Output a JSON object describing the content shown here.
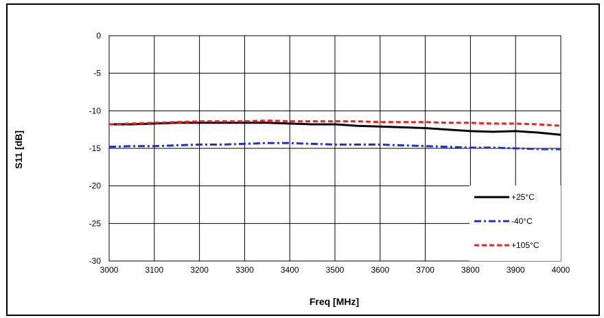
{
  "chart_data": {
    "type": "line",
    "title": "",
    "xlabel": "Freq [MHz]",
    "ylabel": "S11 [dB]",
    "xlim": [
      3000,
      4000
    ],
    "ylim": [
      -30,
      0
    ],
    "xticks": [
      3000,
      3100,
      3200,
      3300,
      3400,
      3500,
      3600,
      3700,
      3800,
      3900,
      4000
    ],
    "yticks": [
      0,
      -5,
      -10,
      -15,
      -20,
      -25,
      -30
    ],
    "grid": true,
    "legend_position": "bottom-right",
    "series": [
      {
        "name": "+25°C",
        "color": "#000000",
        "style": "solid",
        "x": [
          3000,
          3050,
          3100,
          3150,
          3200,
          3250,
          3300,
          3350,
          3400,
          3450,
          3500,
          3550,
          3600,
          3650,
          3700,
          3750,
          3800,
          3850,
          3900,
          3950,
          4000
        ],
        "y": [
          -11.8,
          -11.8,
          -11.7,
          -11.6,
          -11.6,
          -11.6,
          -11.6,
          -11.6,
          -11.7,
          -11.8,
          -11.8,
          -12.0,
          -12.1,
          -12.2,
          -12.3,
          -12.5,
          -12.7,
          -12.8,
          -12.7,
          -12.9,
          -13.2
        ]
      },
      {
        "name": "-40°C",
        "color": "#1f2fd0",
        "style": "dashdot",
        "x": [
          3000,
          3050,
          3100,
          3150,
          3200,
          3250,
          3300,
          3350,
          3400,
          3450,
          3500,
          3550,
          3600,
          3650,
          3700,
          3750,
          3800,
          3850,
          3900,
          3950,
          4000
        ],
        "y": [
          -14.8,
          -14.7,
          -14.7,
          -14.6,
          -14.5,
          -14.5,
          -14.4,
          -14.3,
          -14.3,
          -14.4,
          -14.5,
          -14.5,
          -14.5,
          -14.6,
          -14.7,
          -14.8,
          -14.9,
          -14.9,
          -15.0,
          -15.1,
          -15.1
        ]
      },
      {
        "name": "+105°C",
        "color": "#ff1a1a",
        "style": "dashed",
        "x": [
          3000,
          3050,
          3100,
          3150,
          3200,
          3250,
          3300,
          3350,
          3400,
          3450,
          3500,
          3550,
          3600,
          3650,
          3700,
          3750,
          3800,
          3850,
          3900,
          3950,
          4000
        ],
        "y": [
          -11.8,
          -11.7,
          -11.6,
          -11.5,
          -11.4,
          -11.4,
          -11.4,
          -11.3,
          -11.4,
          -11.4,
          -11.4,
          -11.4,
          -11.5,
          -11.5,
          -11.5,
          -11.6,
          -11.6,
          -11.7,
          -11.7,
          -11.8,
          -12.0
        ]
      }
    ]
  }
}
